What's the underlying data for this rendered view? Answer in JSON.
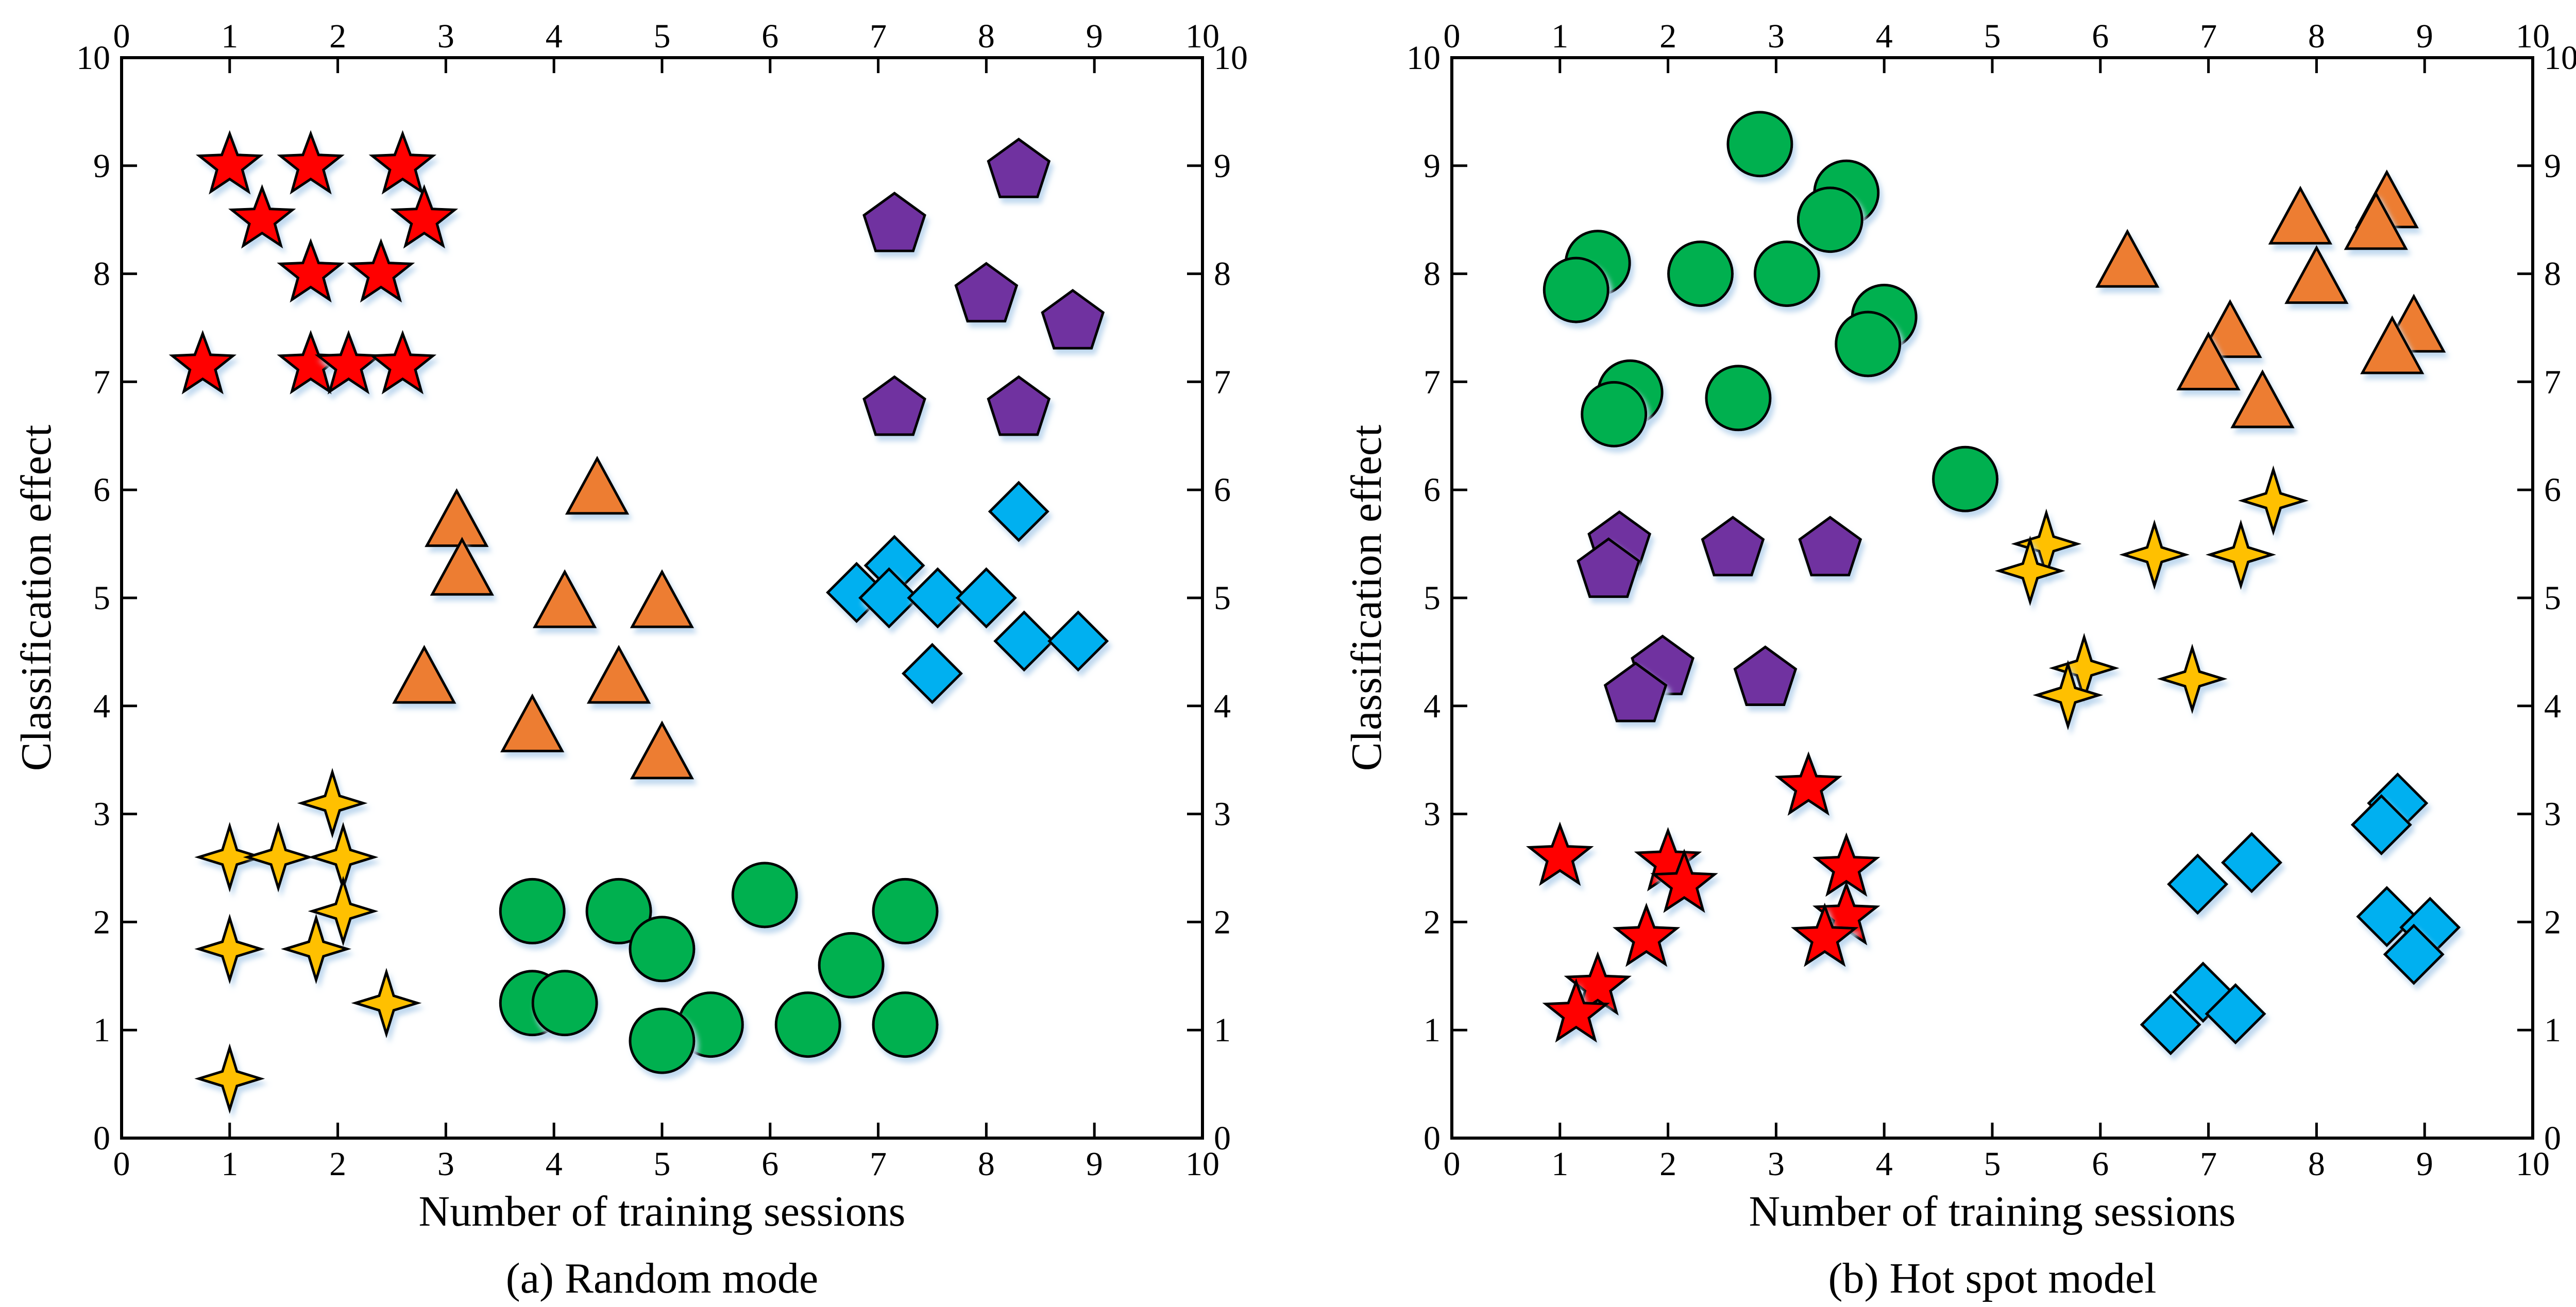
{
  "chart_data": [
    {
      "type": "scatter",
      "panel_caption": "(a) Random mode",
      "xlabel": "Number of training sessions",
      "ylabel": "Classification effect",
      "xlim": [
        0,
        10
      ],
      "ylim": [
        0,
        10
      ],
      "xticks": [
        "0",
        "1",
        "2",
        "3",
        "4",
        "5",
        "6",
        "7",
        "8",
        "9",
        "10"
      ],
      "yticks": [
        "0",
        "1",
        "2",
        "3",
        "4",
        "5",
        "6",
        "7",
        "8",
        "9",
        "10"
      ],
      "mirror_axes": true,
      "grid": false,
      "series": [
        {
          "marker": "star5",
          "color": "#ff0000",
          "points": [
            [
              1.0,
              9.0
            ],
            [
              1.75,
              9.0
            ],
            [
              2.6,
              9.0
            ],
            [
              1.3,
              8.5
            ],
            [
              2.8,
              8.5
            ],
            [
              1.75,
              8.0
            ],
            [
              2.4,
              8.0
            ],
            [
              0.75,
              7.15
            ],
            [
              1.75,
              7.15
            ],
            [
              2.1,
              7.15
            ],
            [
              2.6,
              7.15
            ]
          ]
        },
        {
          "marker": "pentagon",
          "color": "#7030a0",
          "points": [
            [
              8.3,
              8.95
            ],
            [
              7.15,
              8.45
            ],
            [
              8.0,
              7.8
            ],
            [
              8.8,
              7.55
            ],
            [
              7.15,
              6.75
            ],
            [
              8.3,
              6.75
            ]
          ]
        },
        {
          "marker": "triangle",
          "color": "#ed7d31",
          "points": [
            [
              4.4,
              6.0
            ],
            [
              3.1,
              5.7
            ],
            [
              3.15,
              5.25
            ],
            [
              4.1,
              4.95
            ],
            [
              5.0,
              4.95
            ],
            [
              2.8,
              4.25
            ],
            [
              4.6,
              4.25
            ],
            [
              3.8,
              3.8
            ],
            [
              5.0,
              3.55
            ]
          ]
        },
        {
          "marker": "diamond",
          "color": "#00b0f0",
          "points": [
            [
              8.3,
              5.8
            ],
            [
              7.15,
              5.3
            ],
            [
              6.8,
              5.05
            ],
            [
              7.1,
              5.0
            ],
            [
              7.55,
              5.0
            ],
            [
              8.0,
              5.0
            ],
            [
              8.35,
              4.6
            ],
            [
              8.85,
              4.6
            ],
            [
              7.5,
              4.3
            ]
          ]
        },
        {
          "marker": "star4",
          "color": "#ffc000",
          "points": [
            [
              1.95,
              3.1
            ],
            [
              1.0,
              2.6
            ],
            [
              1.45,
              2.6
            ],
            [
              2.05,
              2.6
            ],
            [
              2.05,
              2.1
            ],
            [
              1.0,
              1.75
            ],
            [
              1.8,
              1.75
            ],
            [
              2.45,
              1.25
            ],
            [
              1.0,
              0.55
            ]
          ]
        },
        {
          "marker": "circle",
          "color": "#00b050",
          "points": [
            [
              5.95,
              2.25
            ],
            [
              3.8,
              2.1
            ],
            [
              4.6,
              2.1
            ],
            [
              7.25,
              2.1
            ],
            [
              5.0,
              1.75
            ],
            [
              6.75,
              1.6
            ],
            [
              3.8,
              1.25
            ],
            [
              4.1,
              1.25
            ],
            [
              5.45,
              1.05
            ],
            [
              6.35,
              1.05
            ],
            [
              7.25,
              1.05
            ],
            [
              5.0,
              0.9
            ]
          ]
        }
      ]
    },
    {
      "type": "scatter",
      "panel_caption": "(b) Hot spot model",
      "xlabel": "Number of training sessions",
      "ylabel": "Classification effect",
      "xlim": [
        0,
        10
      ],
      "ylim": [
        0,
        10
      ],
      "xticks": [
        "0",
        "1",
        "2",
        "3",
        "4",
        "5",
        "6",
        "7",
        "8",
        "9",
        "10"
      ],
      "yticks": [
        "0",
        "1",
        "2",
        "3",
        "4",
        "5",
        "6",
        "7",
        "8",
        "9",
        "10"
      ],
      "mirror_axes": true,
      "grid": false,
      "series": [
        {
          "marker": "circle",
          "color": "#00b050",
          "points": [
            [
              2.85,
              9.2
            ],
            [
              3.65,
              8.75
            ],
            [
              3.5,
              8.5
            ],
            [
              1.35,
              8.1
            ],
            [
              2.3,
              8.0
            ],
            [
              3.1,
              8.0
            ],
            [
              1.15,
              7.85
            ],
            [
              4.0,
              7.6
            ],
            [
              3.85,
              7.35
            ],
            [
              1.65,
              6.9
            ],
            [
              2.65,
              6.85
            ],
            [
              1.5,
              6.7
            ],
            [
              4.75,
              6.1
            ]
          ]
        },
        {
          "marker": "triangle",
          "color": "#ed7d31",
          "points": [
            [
              8.65,
              8.65
            ],
            [
              7.85,
              8.5
            ],
            [
              8.55,
              8.45
            ],
            [
              6.25,
              8.1
            ],
            [
              8.0,
              7.95
            ],
            [
              7.2,
              7.45
            ],
            [
              8.9,
              7.5
            ],
            [
              7.0,
              7.15
            ],
            [
              8.7,
              7.3
            ],
            [
              7.5,
              6.8
            ]
          ]
        },
        {
          "marker": "pentagon",
          "color": "#7030a0",
          "points": [
            [
              1.55,
              5.5
            ],
            [
              2.6,
              5.45
            ],
            [
              3.5,
              5.45
            ],
            [
              1.45,
              5.25
            ],
            [
              1.95,
              4.35
            ],
            [
              2.9,
              4.25
            ],
            [
              1.7,
              4.1
            ]
          ]
        },
        {
          "marker": "star4",
          "color": "#ffc000",
          "points": [
            [
              7.6,
              5.9
            ],
            [
              5.5,
              5.5
            ],
            [
              6.5,
              5.4
            ],
            [
              7.3,
              5.4
            ],
            [
              5.35,
              5.25
            ],
            [
              5.85,
              4.35
            ],
            [
              6.85,
              4.25
            ],
            [
              5.7,
              4.1
            ]
          ]
        },
        {
          "marker": "star5",
          "color": "#ff0000",
          "points": [
            [
              3.3,
              3.25
            ],
            [
              1.0,
              2.6
            ],
            [
              2.0,
              2.55
            ],
            [
              3.65,
              2.5
            ],
            [
              2.15,
              2.35
            ],
            [
              3.65,
              2.05
            ],
            [
              1.8,
              1.85
            ],
            [
              3.45,
              1.85
            ],
            [
              1.35,
              1.4
            ],
            [
              1.15,
              1.15
            ]
          ]
        },
        {
          "marker": "diamond",
          "color": "#00b0f0",
          "points": [
            [
              8.75,
              3.1
            ],
            [
              8.6,
              2.9
            ],
            [
              7.4,
              2.55
            ],
            [
              6.9,
              2.35
            ],
            [
              8.65,
              2.05
            ],
            [
              9.05,
              1.95
            ],
            [
              8.9,
              1.7
            ],
            [
              6.95,
              1.35
            ],
            [
              7.25,
              1.15
            ],
            [
              6.65,
              1.05
            ]
          ]
        }
      ]
    }
  ]
}
